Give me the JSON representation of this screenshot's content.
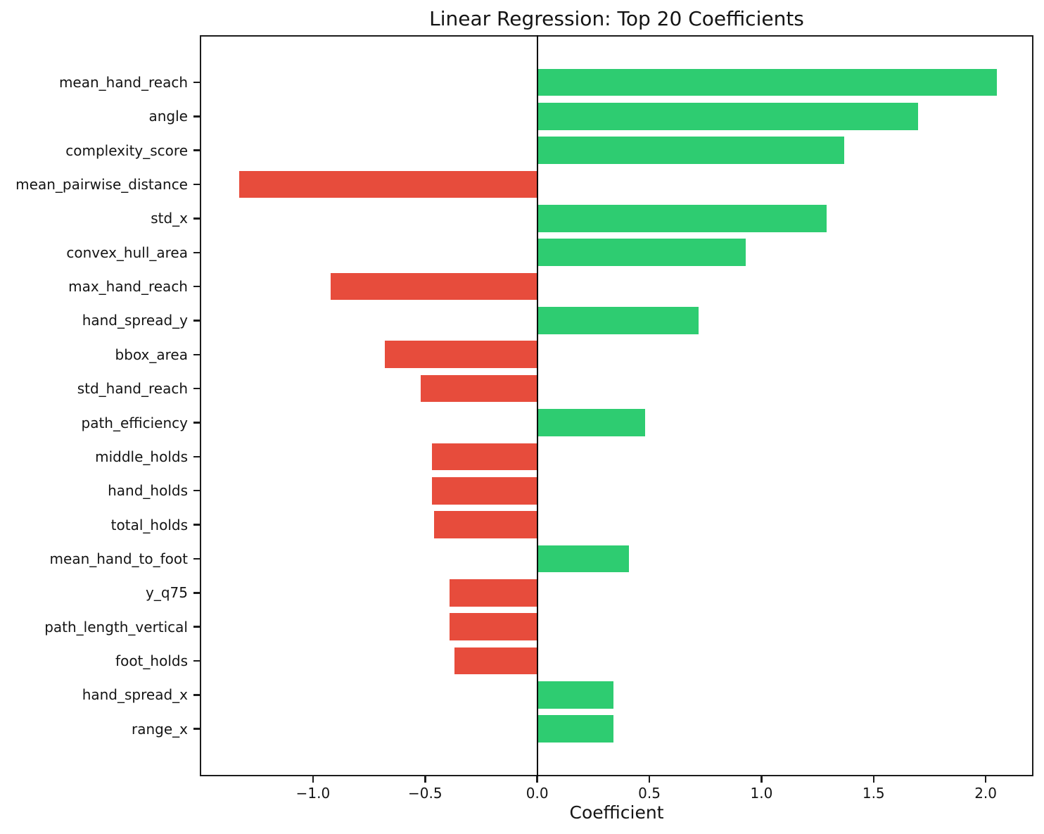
{
  "chart_data": {
    "type": "bar",
    "orientation": "horizontal",
    "title": "Linear Regression: Top 20 Coefficients",
    "xlabel": "Coefficient",
    "ylabel": "",
    "categories": [
      "mean_hand_reach",
      "angle",
      "complexity_score",
      "mean_pairwise_distance",
      "std_x",
      "convex_hull_area",
      "max_hand_reach",
      "hand_spread_y",
      "bbox_area",
      "std_hand_reach",
      "path_efficiency",
      "middle_holds",
      "hand_holds",
      "total_holds",
      "mean_hand_to_foot",
      "y_q75",
      "path_length_vertical",
      "foot_holds",
      "hand_spread_x",
      "range_x"
    ],
    "values": [
      2.05,
      1.7,
      1.37,
      -1.33,
      1.29,
      0.93,
      -0.92,
      0.72,
      -0.68,
      -0.52,
      0.48,
      -0.47,
      -0.47,
      -0.46,
      0.41,
      -0.39,
      -0.39,
      -0.37,
      0.34,
      0.34
    ],
    "xticks": [
      -1.0,
      -0.5,
      0.0,
      0.5,
      1.0,
      1.5,
      2.0
    ],
    "xlim": [
      -1.505,
      2.213
    ],
    "grid": false,
    "legend": null,
    "zero_line": true,
    "colors": {
      "positive": "#2ecc71",
      "negative": "#e74c3c",
      "axis": "#1c1c1c",
      "text": "#141414",
      "background": "#ffffff"
    },
    "color_rule": "green bars for positive coefficients, red bars for negative coefficients"
  }
}
